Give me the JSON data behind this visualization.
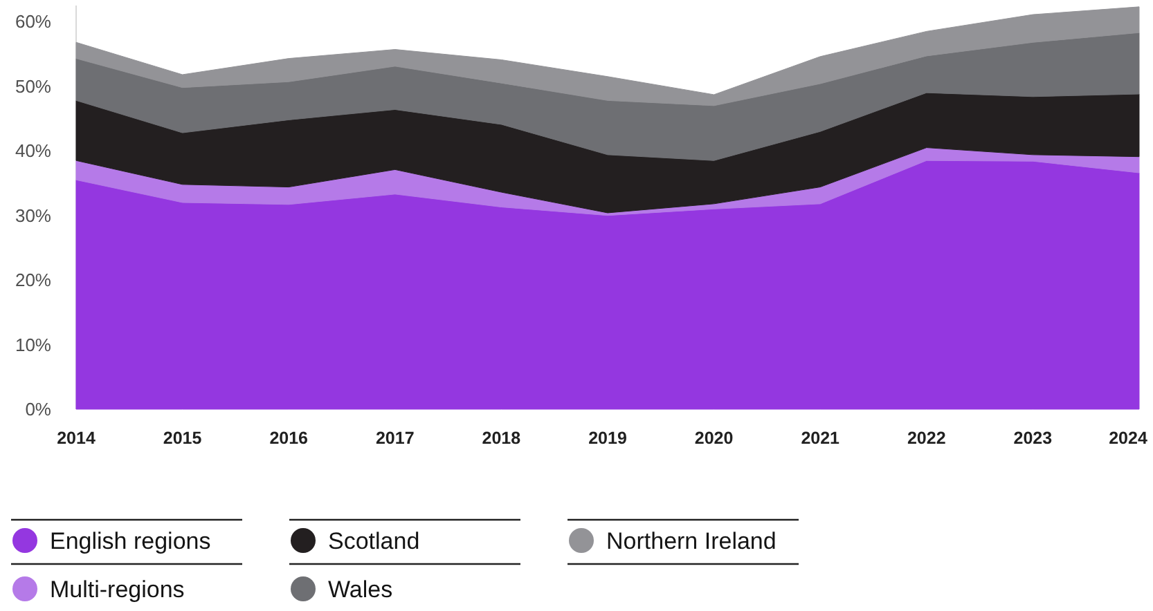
{
  "chart_data": {
    "type": "area",
    "stacked": true,
    "categories": [
      "2014",
      "2015",
      "2016",
      "2017",
      "2018",
      "2019",
      "2020",
      "2021",
      "2022",
      "2023",
      "2024"
    ],
    "series": [
      {
        "name": "English regions",
        "color": "#9437e0",
        "values": [
          35.5,
          32.0,
          31.7,
          33.3,
          31.3,
          30.0,
          31.0,
          31.8,
          38.5,
          38.4,
          36.6
        ]
      },
      {
        "name": "Multi-regions",
        "color": "#b57ae8",
        "values": [
          3.0,
          2.8,
          2.7,
          3.8,
          2.3,
          0.4,
          0.8,
          2.6,
          2.0,
          1.0,
          2.5
        ]
      },
      {
        "name": "Scotland",
        "color": "#231f20",
        "values": [
          9.3,
          8.0,
          10.4,
          9.3,
          10.5,
          9.0,
          6.7,
          8.6,
          8.5,
          9.0,
          9.7
        ]
      },
      {
        "name": "Wales",
        "color": "#6e6f73",
        "values": [
          6.5,
          7.0,
          5.9,
          6.7,
          6.4,
          8.4,
          8.5,
          7.4,
          5.7,
          8.4,
          9.5
        ]
      },
      {
        "name": "Northern Ireland",
        "color": "#939397",
        "values": [
          2.5,
          2.0,
          3.6,
          2.6,
          3.6,
          3.7,
          1.7,
          4.2,
          3.8,
          4.3,
          4.0
        ]
      }
    ],
    "ylim": [
      0,
      62.5
    ],
    "yticks": [
      {
        "value": 0,
        "label": "0%"
      },
      {
        "value": 10,
        "label": "10%"
      },
      {
        "value": 20,
        "label": "20%"
      },
      {
        "value": 30,
        "label": "30%"
      },
      {
        "value": 40,
        "label": "40%"
      },
      {
        "value": 50,
        "label": "50%"
      },
      {
        "value": 60,
        "label": "60%"
      }
    ],
    "grid": false,
    "legend": "bottom"
  }
}
